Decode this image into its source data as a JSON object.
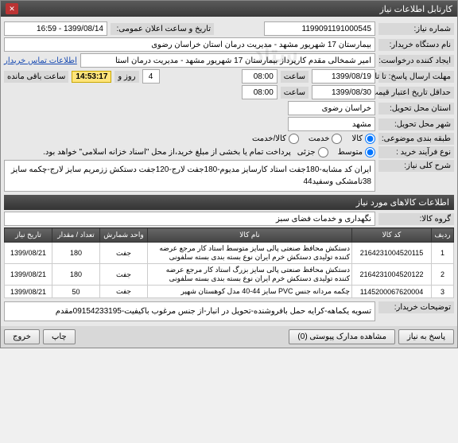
{
  "window": {
    "title": "کارتابل اطلاعات نیاز"
  },
  "fields": {
    "need_no_label": "شماره نیاز:",
    "need_no": "1199091191000545",
    "announce_label": "تاریخ و ساعت اعلان عمومی:",
    "announce": "1399/08/14 - 16:59",
    "buyer_org_label": "نام دستگاه خریدار:",
    "buyer_org": "بیمارستان 17 شهریور مشهد - مدیریت درمان استان خراسان رضوی",
    "creator_label": "ایجاد کننده درخواست:",
    "creator": "امیر  شمخالی مقدم کارپرداز بیمارستان 17 شهریور مشهد - مدیریت درمان استا",
    "contact_link": "اطلاعات تماس خریدار",
    "deadline_label": "مهلت ارسال پاسخ: تا تاریخ:",
    "deadline_date": "1399/08/19",
    "time_lbl": "ساعت",
    "deadline_time": "08:00",
    "and_lbl": "و",
    "days_remain": "4",
    "day_lbl": "روز",
    "countdown": "14:53:17",
    "remain_lbl": "ساعت باقی مانده",
    "validity_label": "حداقل تاریخ اعتبار قیمت:    تا تاریخ:",
    "validity_date": "1399/08/30",
    "validity_time": "08:00",
    "delivery_prov_label": "استان محل تحویل:",
    "delivery_prov": "خراسان رضوی",
    "delivery_city_label": "شهر محل تحویل:",
    "delivery_city": "مشهد",
    "budget_label": "طبقه بندی موضوعی:",
    "budget_opts": [
      "کالا",
      "خدمت",
      "کالا/خدمت"
    ],
    "budget_sel": 0,
    "process_label": "نوع فرآیند خرید :",
    "process_opts": [
      "متوسط",
      "جزئی"
    ],
    "process_sel": 0,
    "process_note": "پرداخت تمام یا بخشی از مبلغ خرید،از محل \"اسناد خزانه اسلامی\" خواهد بود.",
    "overall_desc_head": "شرح کلی نیاز:",
    "overall_desc": "ایران کد مشابه-180جفت استاد کارسایز مدیوم-180جفت لارج-120جفت دستکش ززمریم سایز لارج-چکمه سایز 38تامشکی وسفید44",
    "items_head": "اطلاعات کالاهای مورد نیاز",
    "group_label": "گروه کالا:",
    "group": "نگهداری و خدمات فضای سبز",
    "buyer_notes_head": "توضیحات خریدار:",
    "buyer_notes": "تسویه یکماهه-کرایه حمل بافروشنده-تحویل در انبار-از جنس مرغوب باکیفیت-09154233195مقدم"
  },
  "table": {
    "headers": [
      "ردیف",
      "کد کالا",
      "نام کالا",
      "واحد شمارش",
      "تعداد / مقدار",
      "تاریخ نیاز"
    ],
    "rows": [
      {
        "n": "1",
        "code": "2164231004520115",
        "name": "دستکش محافظ صنعتی پالی سایز متوسط استاد کار مرجع عرضه کننده تولیدی دستکش خرم ایران نوع بسته بندی بسته سلفونی",
        "unit": "جفت",
        "qty": "180",
        "date": "1399/08/21"
      },
      {
        "n": "2",
        "code": "2164231004520122",
        "name": "دستکش محافظ صنعتی پالی سایز بزرگ استاد کار مرجع عرضه کننده تولیدی دستکش خرم ایران نوع بسته بندی بسته سلفونی",
        "unit": "جفت",
        "qty": "180",
        "date": "1399/08/21"
      },
      {
        "n": "3",
        "code": "1145200067620004",
        "name": "چکمه مردانه جنس PVC سایز 44-40 مدل کوهستان شهپر",
        "unit": "جفت",
        "qty": "50",
        "date": "1399/08/21"
      }
    ]
  },
  "footer": {
    "reply": "پاسخ به نیاز",
    "attach": "مشاهده مدارک پیوستی  (0)",
    "print": "چاپ",
    "exit": "خروج"
  }
}
